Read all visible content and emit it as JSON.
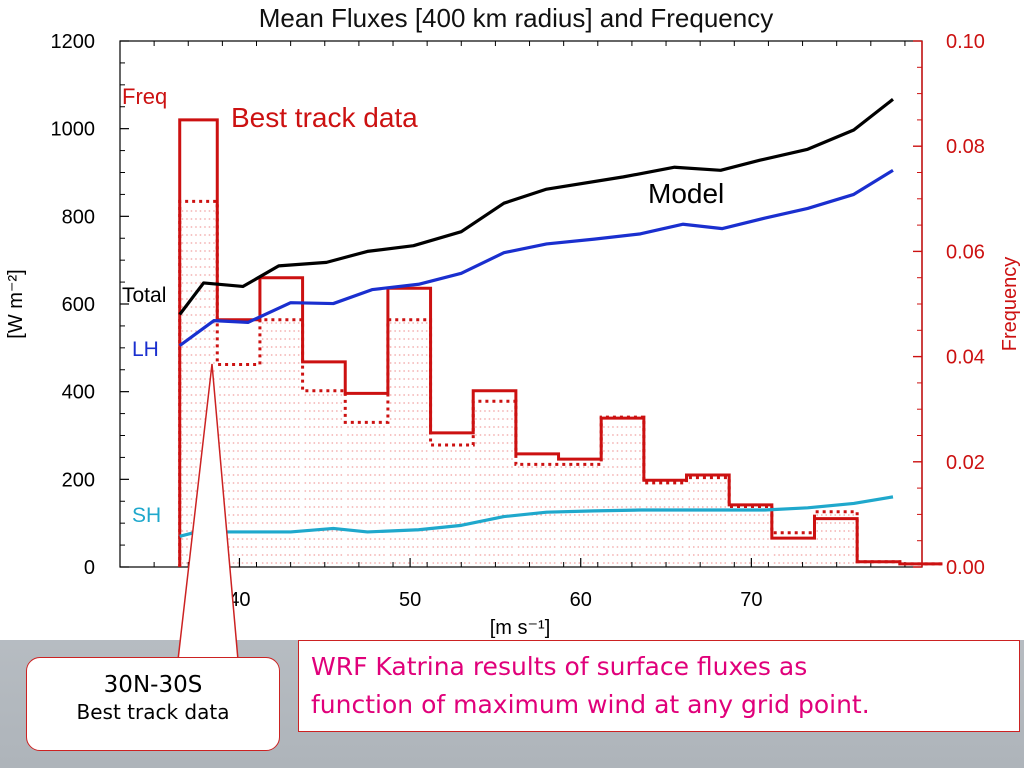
{
  "chart_data": {
    "type": "line",
    "title": "Mean Fluxes [400 km radius] and Frequency",
    "xlabel": "[m s⁻¹]",
    "ylabel_left": "[W m⁻²]",
    "ylabel_right": "Frequency",
    "xlim": [
      33,
      80
    ],
    "xticks": [
      40,
      50,
      60,
      70
    ],
    "ylim_left": [
      0,
      1200
    ],
    "yticks_left": [
      0,
      200,
      400,
      600,
      800,
      1000,
      1200
    ],
    "ylim_right": [
      0,
      0.1
    ],
    "yticks_right": [
      "0.00",
      "0.02",
      "0.04",
      "0.06",
      "0.08",
      "0.10"
    ],
    "grid": false,
    "line_series": [
      {
        "name": "Total",
        "color": "#000000",
        "x": [
          36.5,
          37.9,
          40.2,
          41.1,
          42.3,
          45.1,
          47.5,
          50.2,
          53,
          55.5,
          58,
          62.5,
          65.5,
          68.2,
          70.5,
          73.3,
          76,
          78.3
        ],
        "y": [
          576,
          648,
          640,
          660,
          687,
          695,
          720,
          733,
          765,
          830,
          862,
          890,
          912,
          905,
          928,
          953,
          997,
          1067
        ]
      },
      {
        "name": "LH",
        "color": "#1a2fcf",
        "x": [
          36.5,
          38.5,
          40.5,
          43,
          45.5,
          47.8,
          50.5,
          53,
          55.5,
          58,
          60.8,
          63.5,
          66,
          68.3,
          70.8,
          73.3,
          76,
          78.3
        ],
        "y": [
          505,
          562,
          558,
          603,
          601,
          633,
          645,
          670,
          717,
          737,
          748,
          760,
          782,
          772,
          796,
          818,
          850,
          905
        ]
      },
      {
        "name": "SH",
        "color": "#1fa8cc",
        "x": [
          36.5,
          37.5,
          40.5,
          43,
          45.5,
          47.5,
          50.5,
          53,
          55.5,
          58,
          60.8,
          63.5,
          66,
          68.3,
          70.8,
          73.3,
          76,
          78.3
        ],
        "y": [
          70,
          80,
          80,
          80,
          88,
          80,
          85,
          95,
          115,
          125,
          128,
          130,
          130,
          130,
          130,
          135,
          145,
          160
        ]
      }
    ],
    "step_series": [
      {
        "name": "Freq",
        "style": "solid",
        "color": "#cc1111",
        "edges": [
          36.5,
          38.7,
          41.2,
          43.7,
          46.2,
          48.7,
          51.2,
          53.7,
          56.2,
          58.7,
          61.2,
          63.7,
          66.2,
          68.7,
          71.2,
          73.7,
          76.2,
          78.7
        ],
        "values": [
          0.085,
          0.047,
          0.055,
          0.039,
          0.033,
          0.053,
          0.0255,
          0.0335,
          0.0215,
          0.0205,
          0.0283,
          0.0165,
          0.0175,
          0.0118,
          0.0055,
          0.0092,
          0.001,
          0.0006
        ]
      },
      {
        "name": "30N-30S Best track data",
        "style": "dotted",
        "color": "#cc1111",
        "edges": [
          36.5,
          38.7,
          41.2,
          43.7,
          46.2,
          48.7,
          51.2,
          53.7,
          56.2,
          58.7,
          61.2,
          63.7,
          66.2,
          68.7,
          71.2,
          73.7,
          76.2,
          78.7
        ],
        "values": [
          0.0695,
          0.0385,
          0.047,
          0.0335,
          0.0275,
          0.047,
          0.0232,
          0.0315,
          0.0195,
          0.0195,
          0.0285,
          0.016,
          0.017,
          0.0115,
          0.0065,
          0.0105,
          0.001,
          0.0006
        ]
      }
    ],
    "annotations": {
      "freq_label": "Freq",
      "total_label": "Total",
      "lh_label": "LH",
      "sh_label": "SH",
      "best_track_label": "Best track data",
      "model_label": "Model"
    }
  },
  "callout": {
    "line1": "30N-30S",
    "line2": "Best track data"
  },
  "caption": {
    "line1": "WRF Katrina results of surface fluxes  as",
    "line2": "function of maximum wind at any grid point."
  },
  "colors": {
    "total": "#000000",
    "lh": "#1a2fcf",
    "sh": "#1fa8cc",
    "freq": "#cc1111",
    "caption": "#e0007a"
  }
}
